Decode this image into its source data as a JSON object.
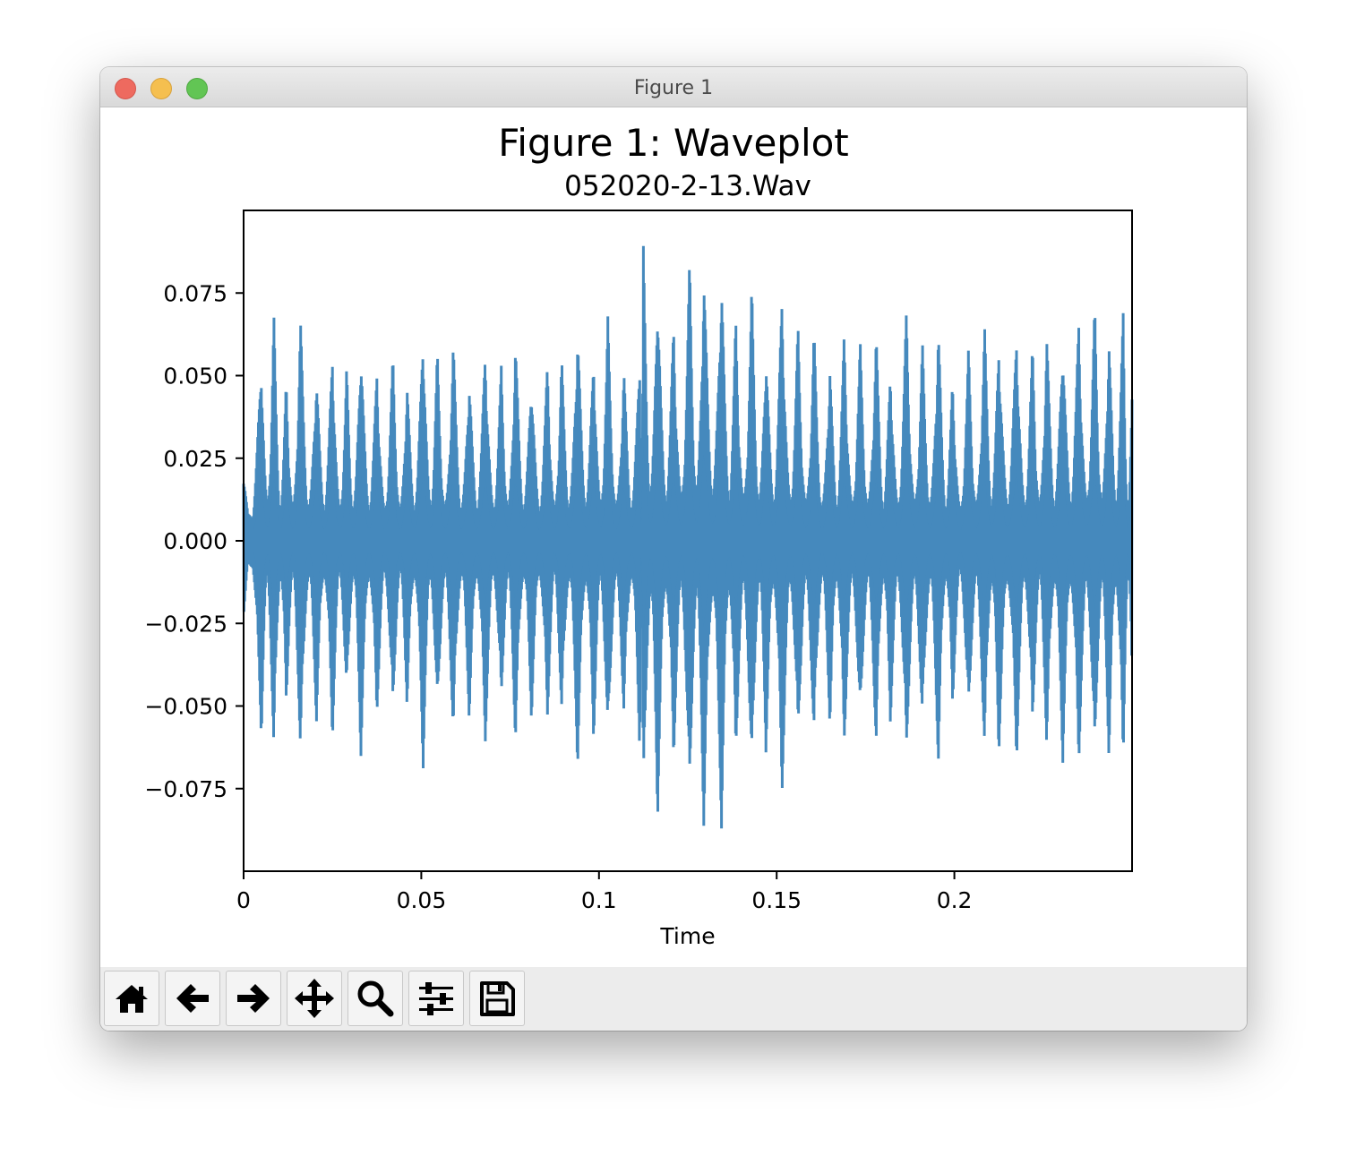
{
  "window": {
    "title": "Figure 1"
  },
  "toolbar": {
    "buttons": [
      {
        "name": "home-button",
        "icon": "home-icon"
      },
      {
        "name": "back-button",
        "icon": "arrow-left-icon"
      },
      {
        "name": "forward-button",
        "icon": "arrow-right-icon"
      },
      {
        "name": "pan-button",
        "icon": "move-icon"
      },
      {
        "name": "zoom-button",
        "icon": "magnifier-icon"
      },
      {
        "name": "configure-subplots-button",
        "icon": "sliders-icon"
      },
      {
        "name": "save-button",
        "icon": "floppy-disk-icon"
      }
    ]
  },
  "chart_data": {
    "type": "line",
    "title": "Figure 1: Waveplot",
    "subtitle": "052020-2-13.Wav",
    "xlabel": "Time",
    "ylabel": "",
    "xlim": [
      0,
      0.25
    ],
    "ylim": [
      -0.1,
      0.1
    ],
    "grid": false,
    "line_color": "#4589bd",
    "x_ticks": [
      0,
      0.05,
      0.1,
      0.15,
      0.2
    ],
    "x_tick_labels": [
      "0",
      "0.05",
      "0.1",
      "0.15",
      "0.2"
    ],
    "y_ticks": [
      0.075,
      0.05,
      0.025,
      0.0,
      -0.025,
      -0.05,
      -0.075
    ],
    "y_tick_labels": [
      "0.075",
      "0.050",
      "0.025",
      "0.000",
      "−0.025",
      "−0.050",
      "−0.075"
    ],
    "series": [
      {
        "envelope_peaks": {
          "t": [
            0.0,
            0.005,
            0.0085,
            0.012,
            0.016,
            0.0205,
            0.025,
            0.029,
            0.033,
            0.0375,
            0.042,
            0.046,
            0.0505,
            0.0545,
            0.059,
            0.0635,
            0.068,
            0.0725,
            0.0765,
            0.081,
            0.0855,
            0.0895,
            0.094,
            0.0985,
            0.1025,
            0.107,
            0.1115,
            0.1125,
            0.1165,
            0.121,
            0.1255,
            0.1295,
            0.1345,
            0.1385,
            0.143,
            0.147,
            0.1515,
            0.156,
            0.1605,
            0.165,
            0.169,
            0.1735,
            0.178,
            0.182,
            0.1865,
            0.191,
            0.1955,
            0.1995,
            0.204,
            0.2085,
            0.2125,
            0.2175,
            0.222,
            0.226,
            0.2305,
            0.235,
            0.2395,
            0.2435,
            0.2475,
            0.25
          ],
          "amp": [
            0.023,
            0.06,
            0.071,
            0.052,
            0.069,
            0.056,
            0.062,
            0.053,
            0.066,
            0.055,
            0.057,
            0.052,
            0.07,
            0.058,
            0.062,
            0.055,
            0.063,
            0.054,
            0.064,
            0.055,
            0.057,
            0.057,
            0.07,
            0.062,
            0.068,
            0.055,
            0.066,
            0.09,
            0.085,
            0.07,
            0.086,
            0.089,
            0.089,
            0.07,
            0.078,
            0.065,
            0.08,
            0.066,
            0.065,
            0.058,
            0.066,
            0.061,
            0.066,
            0.057,
            0.071,
            0.061,
            0.07,
            0.052,
            0.059,
            0.068,
            0.066,
            0.068,
            0.061,
            0.066,
            0.068,
            0.071,
            0.072,
            0.068,
            0.073,
            0.045
          ]
        }
      }
    ]
  }
}
